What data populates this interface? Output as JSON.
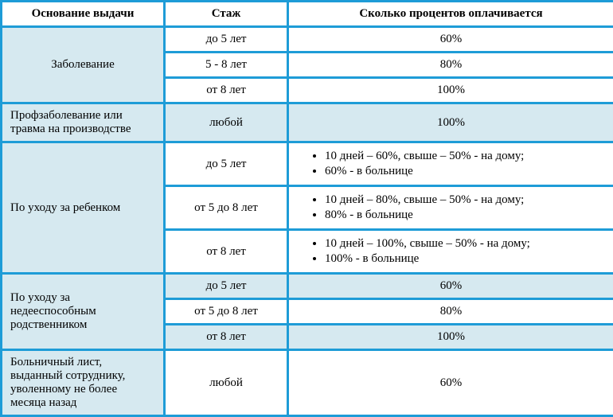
{
  "headers": {
    "basis": "Основание выдачи",
    "stage": "Стаж",
    "percent": "Сколько процентов оплачивается"
  },
  "rows": {
    "r1": {
      "basis": "Заболевание",
      "s1": "до 5 лет",
      "p1": "60%",
      "s2": "5 - 8 лет",
      "p2": "80%",
      "s3": "от 8 лет",
      "p3": "100%"
    },
    "r2": {
      "basis": "Профзаболевание или травма на производстве",
      "s1": "любой",
      "p1": "100%"
    },
    "r3": {
      "basis": "По уходу за ребенком",
      "s1": "до 5 лет",
      "p1a": "10 дней – 60%, свыше – 50% - на дому;",
      "p1b": "60% - в больнице",
      "s2": "от 5 до 8 лет",
      "p2a": "10 дней – 80%, свыше – 50% - на дому;",
      "p2b": "80% - в больнице",
      "s3": "от 8 лет",
      "p3a": "10 дней – 100%, свыше – 50% - на дому;",
      "p3b": "100% - в больнице"
    },
    "r4": {
      "basis": "По уходу за недееспособным родственником",
      "s1": "до 5 лет",
      "p1": "60%",
      "s2": "от 5 до 8 лет",
      "p2": "80%",
      "s3": "от 8 лет",
      "p3": "100%"
    },
    "r5": {
      "basis": "Больничный лист, выданный сотруднику, уволенному не более месяца назад",
      "s1": "любой",
      "p1": "60%"
    }
  }
}
